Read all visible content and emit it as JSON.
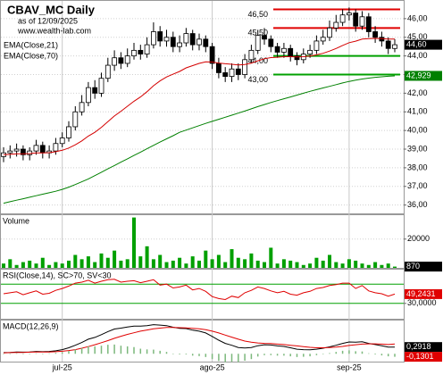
{
  "chart_data": [
    {
      "type": "candlestick",
      "title": "CBAV_MC Daily",
      "subtitle": "as of 12/09/2025",
      "annotation": "www.wealth-lab.com",
      "categories": [
        null,
        null,
        null,
        null,
        null,
        null,
        null,
        null,
        null,
        "jul-25",
        null,
        null,
        null,
        null,
        null,
        null,
        null,
        null,
        null,
        null,
        null,
        null,
        null,
        null,
        null,
        null,
        null,
        null,
        null,
        null,
        null,
        null,
        "ago-25",
        null,
        null,
        null,
        null,
        null,
        null,
        null,
        null,
        null,
        null,
        null,
        null,
        null,
        null,
        null,
        null,
        null,
        null,
        null,
        null,
        "sep-25",
        null,
        null,
        null,
        null,
        null,
        null,
        null
      ],
      "open": [
        38.6,
        38.8,
        38.9,
        39.0,
        38.7,
        38.9,
        39.2,
        38.8,
        38.9,
        39.3,
        39.6,
        40.2,
        41.0,
        41.5,
        42.3,
        42.0,
        42.8,
        43.5,
        43.9,
        43.6,
        44.0,
        44.3,
        44.1,
        44.6,
        45.3,
        44.8,
        45.0,
        44.5,
        44.7,
        45.2,
        44.6,
        44.9,
        44.5,
        43.6,
        43.1,
        42.9,
        43.3,
        43.0,
        43.8,
        44.3,
        45.1,
        44.9,
        44.5,
        44.2,
        44.4,
        44.0,
        43.8,
        44.1,
        44.3,
        44.8,
        45.0,
        45.5,
        45.8,
        46.2,
        46.3,
        45.6,
        46.1,
        45.3,
        45.0,
        44.8,
        44.4
      ],
      "high": [
        39.1,
        39.2,
        39.3,
        39.2,
        39.1,
        39.5,
        39.4,
        39.2,
        39.6,
        39.9,
        40.5,
        41.3,
        41.9,
        42.6,
        42.7,
        43.1,
        43.9,
        44.3,
        44.2,
        44.4,
        44.7,
        44.6,
        45.0,
        45.8,
        45.6,
        45.4,
        45.3,
        45.1,
        45.5,
        45.4,
        45.2,
        45.1,
        44.7,
        43.9,
        43.4,
        43.6,
        43.6,
        44.1,
        44.6,
        45.4,
        45.5,
        45.1,
        44.7,
        44.7,
        44.6,
        44.2,
        44.4,
        44.6,
        45.1,
        45.4,
        45.9,
        46.2,
        46.5,
        46.6,
        46.5,
        46.4,
        46.3,
        45.6,
        45.3,
        45.0,
        44.9
      ],
      "low": [
        38.3,
        38.5,
        38.6,
        38.4,
        38.4,
        38.7,
        38.5,
        38.5,
        38.7,
        39.1,
        39.4,
        40.0,
        40.8,
        41.3,
        41.7,
        41.8,
        42.6,
        43.2,
        43.3,
        43.4,
        43.8,
        43.8,
        43.9,
        44.4,
        44.5,
        44.5,
        44.2,
        44.2,
        44.5,
        44.3,
        44.3,
        44.2,
        43.3,
        42.8,
        42.6,
        42.6,
        42.7,
        42.8,
        43.6,
        44.1,
        44.6,
        44.2,
        43.9,
        43.9,
        43.7,
        43.5,
        43.6,
        43.9,
        44.1,
        44.6,
        44.8,
        45.3,
        45.6,
        45.9,
        45.3,
        45.4,
        45.0,
        44.7,
        44.5,
        44.1,
        44.2
      ],
      "close": [
        38.8,
        38.9,
        39.0,
        38.7,
        38.9,
        39.2,
        38.8,
        38.9,
        39.3,
        39.6,
        40.2,
        41.0,
        41.5,
        42.3,
        42.0,
        42.8,
        43.5,
        43.9,
        43.6,
        44.0,
        44.3,
        44.1,
        44.6,
        45.3,
        44.8,
        45.0,
        44.5,
        44.7,
        45.2,
        44.6,
        44.9,
        44.5,
        43.6,
        43.1,
        42.9,
        43.3,
        43.0,
        43.8,
        44.3,
        45.1,
        44.9,
        44.5,
        44.2,
        44.4,
        44.0,
        43.8,
        44.1,
        44.3,
        44.8,
        45.0,
        45.5,
        45.8,
        46.2,
        46.3,
        45.6,
        46.1,
        45.3,
        45.0,
        44.8,
        44.4,
        44.6
      ],
      "close_value_labels": {
        "60": "44,60"
      },
      "series": [
        {
          "name": "EMA(Close,21)",
          "color": "#d40000",
          "values": [
            38.7,
            38.72,
            38.75,
            38.75,
            38.76,
            38.8,
            38.8,
            38.81,
            38.86,
            38.94,
            39.06,
            39.23,
            39.44,
            39.7,
            39.9,
            40.17,
            40.47,
            40.78,
            41.03,
            41.3,
            41.57,
            41.8,
            42.08,
            42.4,
            42.66,
            42.87,
            43.02,
            43.17,
            43.36,
            43.48,
            43.6,
            43.68,
            43.67,
            43.62,
            43.58,
            43.55,
            43.52,
            43.54,
            43.61,
            43.74,
            43.85,
            43.91,
            43.93,
            43.96,
            43.96,
            43.95,
            43.96,
            43.99,
            44.06,
            44.14,
            44.26,
            44.4,
            44.56,
            44.71,
            44.79,
            44.9,
            44.93,
            44.94,
            44.93,
            44.9,
            44.9
          ]
        },
        {
          "name": "EMA(Close,70)",
          "color": "#008000",
          "values": [
            36.1,
            36.18,
            36.26,
            36.34,
            36.42,
            36.5,
            36.58,
            36.66,
            36.74,
            36.84,
            36.96,
            37.1,
            37.25,
            37.4,
            37.58,
            37.76,
            37.94,
            38.12,
            38.3,
            38.48,
            38.66,
            38.84,
            39.02,
            39.2,
            39.38,
            39.55,
            39.72,
            39.9,
            40.02,
            40.14,
            40.26,
            40.38,
            40.49,
            40.6,
            40.71,
            40.82,
            40.93,
            41.04,
            41.16,
            41.28,
            41.39,
            41.5,
            41.6,
            41.7,
            41.8,
            41.9,
            42.0,
            42.1,
            42.19,
            42.28,
            42.37,
            42.46,
            42.55,
            42.63,
            42.7,
            42.76,
            42.81,
            42.85,
            42.88,
            42.91,
            42.93
          ],
          "value_labels": {
            "60": "42,929"
          }
        }
      ],
      "levels": [
        {
          "value": 46.5,
          "label": "46,50",
          "color": "#e00000"
        },
        {
          "value": 45.5,
          "label": "45,50",
          "color": "#e00000"
        },
        {
          "value": 44.0,
          "label": "44,00",
          "color": "#00a000"
        },
        {
          "value": 43.0,
          "label": "43,00",
          "color": "#00a000"
        }
      ],
      "ylim": [
        35.6,
        47
      ],
      "yticks": [
        {
          "value": 36,
          "label": "36,00"
        },
        {
          "value": 37,
          "label": "37,00"
        },
        {
          "value": 38,
          "label": "38,00"
        },
        {
          "value": 39,
          "label": "39,00"
        },
        {
          "value": 40,
          "label": "40,00"
        },
        {
          "value": 41,
          "label": "41,00"
        },
        {
          "value": 42,
          "label": "42,00"
        },
        {
          "value": 43,
          "label": "43,00"
        },
        {
          "value": 44,
          "label": "44,00"
        },
        {
          "value": 45,
          "label": "45,00"
        },
        {
          "value": 46,
          "label": "46,00"
        }
      ],
      "grid": true
    },
    {
      "type": "bar",
      "title": "Volume",
      "color": "#00a000",
      "values": [
        3000,
        6000,
        2000,
        4000,
        5000,
        3000,
        7000,
        2000,
        4000,
        3000,
        5000,
        9000,
        6000,
        8000,
        4000,
        10000,
        7000,
        12000,
        5000,
        6000,
        35000,
        8000,
        15000,
        6000,
        9000,
        4000,
        5000,
        7000,
        3000,
        8000,
        5000,
        12000,
        6000,
        9000,
        4000,
        13000,
        7000,
        6000,
        10000,
        5000,
        4000,
        14000,
        3000,
        6000,
        5000,
        4000,
        2000,
        3000,
        7000,
        5000,
        9000,
        4000,
        3000,
        6000,
        5000,
        3000,
        2000,
        4000,
        2000,
        3000,
        870
      ],
      "ylim": [
        0,
        36000
      ],
      "yticks": [
        20000
      ],
      "grid": true
    },
    {
      "type": "line",
      "title": "RSI(Close,14), SC>70, SV<30",
      "series": [
        {
          "color": "#e00000",
          "values": [
            50,
            52,
            54,
            48,
            52,
            56,
            49,
            51,
            57,
            61,
            66,
            72,
            74,
            78,
            72,
            76,
            79,
            80,
            74,
            76,
            77,
            73,
            76,
            79,
            68,
            70,
            62,
            64,
            68,
            58,
            61,
            55,
            44,
            40,
            38,
            45,
            42,
            52,
            57,
            64,
            61,
            56,
            52,
            55,
            49,
            47,
            52,
            55,
            61,
            63,
            67,
            69,
            72,
            72,
            61,
            67,
            56,
            52,
            50,
            45,
            49.2431
          ],
          "value_labels": {
            "60": "49,2431"
          }
        }
      ],
      "levels": [
        {
          "value": 70,
          "color": "#00a000"
        },
        {
          "value": 30,
          "color": "#00a000"
        }
      ],
      "ylim": [
        0,
        100
      ],
      "yticks": [
        {
          "value": 30,
          "label": "30,0000"
        }
      ],
      "grid": false
    },
    {
      "type": "line",
      "title": "MACD(12,26,9)",
      "series": [
        {
          "color": "#000000",
          "values": [
            0.05,
            0.06,
            0.08,
            0.07,
            0.08,
            0.1,
            0.09,
            0.1,
            0.13,
            0.18,
            0.26,
            0.37,
            0.49,
            0.63,
            0.71,
            0.83,
            0.96,
            1.07,
            1.11,
            1.16,
            1.2,
            1.2,
            1.22,
            1.26,
            1.24,
            1.22,
            1.15,
            1.1,
            1.09,
            1.02,
            0.98,
            0.9,
            0.75,
            0.59,
            0.45,
            0.37,
            0.27,
            0.25,
            0.27,
            0.35,
            0.39,
            0.38,
            0.34,
            0.32,
            0.26,
            0.2,
            0.18,
            0.17,
            0.2,
            0.24,
            0.3,
            0.37,
            0.45,
            0.51,
            0.5,
            0.52,
            0.45,
            0.4,
            0.35,
            0.29,
            0.2918
          ],
          "value_labels": {
            "60": "0,2918"
          }
        },
        {
          "color": "#e00000",
          "values": [
            0.04,
            0.05,
            0.06,
            0.06,
            0.07,
            0.08,
            0.08,
            0.08,
            0.09,
            0.11,
            0.14,
            0.18,
            0.24,
            0.31,
            0.39,
            0.48,
            0.57,
            0.67,
            0.76,
            0.84,
            0.91,
            0.98,
            1.03,
            1.08,
            1.11,
            1.14,
            1.14,
            1.13,
            1.12,
            1.1,
            1.08,
            1.04,
            0.98,
            0.9,
            0.81,
            0.72,
            0.63,
            0.55,
            0.5,
            0.47,
            0.45,
            0.44,
            0.42,
            0.4,
            0.37,
            0.34,
            0.31,
            0.28,
            0.26,
            0.26,
            0.27,
            0.29,
            0.32,
            0.36,
            0.39,
            0.42,
            0.43,
            0.43,
            0.42,
            0.4,
            0.4219
          ]
        },
        {
          "color": "#7cb87c",
          "kind": "bar",
          "values": [
            0.01,
            0.01,
            0.02,
            0.01,
            0.01,
            0.02,
            0.01,
            0.02,
            0.04,
            0.07,
            0.12,
            0.19,
            0.25,
            0.32,
            0.32,
            0.35,
            0.39,
            0.4,
            0.35,
            0.32,
            0.29,
            0.22,
            0.19,
            0.18,
            0.13,
            0.08,
            0.01,
            -0.03,
            -0.03,
            -0.08,
            -0.1,
            -0.14,
            -0.23,
            -0.31,
            -0.36,
            -0.35,
            -0.36,
            -0.3,
            -0.23,
            -0.12,
            -0.06,
            -0.06,
            -0.08,
            -0.08,
            -0.11,
            -0.14,
            -0.13,
            -0.11,
            -0.06,
            -0.02,
            0.03,
            0.08,
            0.13,
            0.15,
            0.11,
            0.1,
            0.02,
            -0.03,
            -0.07,
            -0.11,
            -0.1301
          ],
          "value_labels": {
            "60": "-0,1301"
          },
          "label_color": "#e00000"
        }
      ],
      "ylim": [
        -0.3,
        1.4
      ],
      "yticks": [],
      "grid": false
    }
  ]
}
